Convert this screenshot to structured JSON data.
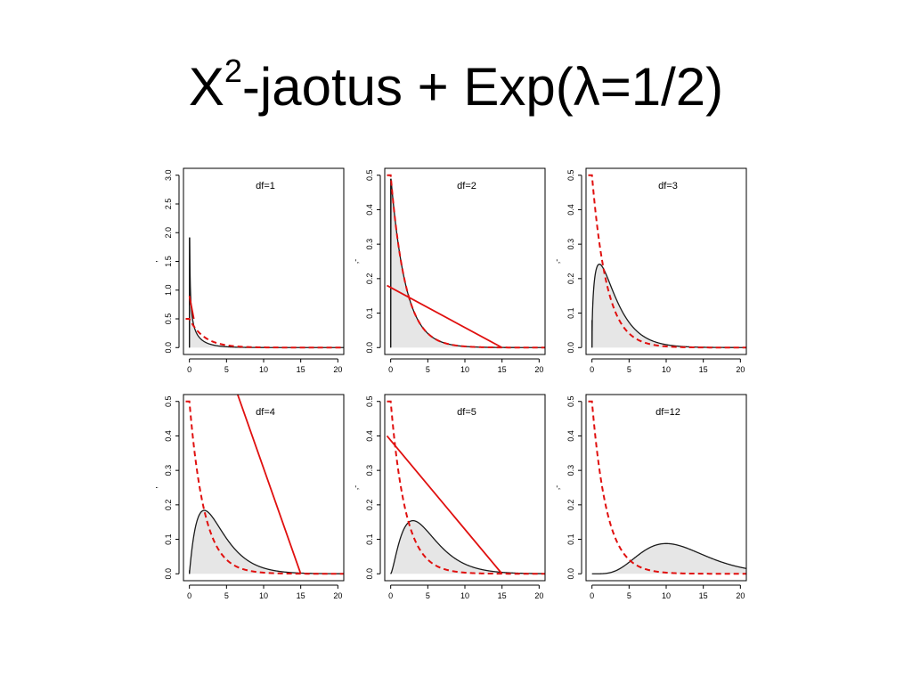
{
  "slide": {
    "title_main": "X",
    "title_sup": "2",
    "title_rest": "-jaotus + Exp(λ=1/2)"
  },
  "colors": {
    "chisq_fill": "#e6e6e6",
    "chisq_line": "#1a1a1a",
    "exp_line": "#e0100f",
    "axis": "#000000"
  },
  "chart_data": [
    {
      "type": "line",
      "title": "df=1",
      "df": 1,
      "xlim": [
        0,
        20
      ],
      "ylim": [
        0,
        3.0
      ],
      "xticks": [
        0,
        5,
        10,
        15,
        20
      ],
      "yticks": [
        0.0,
        0.5,
        1.0,
        1.5,
        2.0,
        2.5,
        3.0
      ],
      "ylabel": ",",
      "series": [
        {
          "kind": "chisq_density",
          "df": 1,
          "style": "filled area, dark outline"
        },
        {
          "kind": "exp_density",
          "rate": 0.5,
          "style": "red dashed"
        },
        {
          "kind": "straight_line",
          "x": [
            0,
            0.6
          ],
          "y": [
            0.9,
            0.5
          ],
          "style": "red solid"
        }
      ]
    },
    {
      "type": "line",
      "title": "df=2",
      "df": 2,
      "xlim": [
        0,
        20
      ],
      "ylim": [
        0,
        0.5
      ],
      "xticks": [
        0,
        5,
        10,
        15,
        20
      ],
      "yticks": [
        0.0,
        0.1,
        0.2,
        0.3,
        0.4,
        0.5
      ],
      "ylabel": ",-",
      "series": [
        {
          "kind": "chisq_density",
          "df": 2,
          "style": "filled area, dark outline"
        },
        {
          "kind": "exp_density",
          "rate": 0.5,
          "style": "red dashed"
        },
        {
          "kind": "straight_line",
          "x": [
            -0.5,
            15
          ],
          "y": [
            0.18,
            0.0
          ],
          "style": "red solid"
        }
      ]
    },
    {
      "type": "line",
      "title": "df=3",
      "df": 3,
      "xlim": [
        0,
        20
      ],
      "ylim": [
        0,
        0.5
      ],
      "xticks": [
        0,
        5,
        10,
        15,
        20
      ],
      "yticks": [
        0.0,
        0.1,
        0.2,
        0.3,
        0.4,
        0.5
      ],
      "ylabel": ",-",
      "series": [
        {
          "kind": "chisq_density",
          "df": 3,
          "style": "filled area, dark outline"
        },
        {
          "kind": "exp_density",
          "rate": 0.5,
          "style": "red dashed"
        }
      ]
    },
    {
      "type": "line",
      "title": "df=4",
      "df": 4,
      "xlim": [
        0,
        20
      ],
      "ylim": [
        0,
        0.5
      ],
      "xticks": [
        0,
        5,
        10,
        15,
        20
      ],
      "yticks": [
        0.0,
        0.1,
        0.2,
        0.3,
        0.4,
        0.5
      ],
      "ylabel": ",",
      "series": [
        {
          "kind": "chisq_density",
          "df": 4,
          "style": "filled area, dark outline"
        },
        {
          "kind": "exp_density",
          "rate": 0.5,
          "style": "red dashed"
        },
        {
          "kind": "straight_line",
          "x": [
            6.5,
            15
          ],
          "y": [
            0.52,
            0.0
          ],
          "style": "red solid"
        }
      ]
    },
    {
      "type": "line",
      "title": "df=5",
      "df": 5,
      "xlim": [
        0,
        20
      ],
      "ylim": [
        0,
        0.5
      ],
      "xticks": [
        0,
        5,
        10,
        15,
        20
      ],
      "yticks": [
        0.0,
        0.1,
        0.2,
        0.3,
        0.4,
        0.5
      ],
      "ylabel": ",-",
      "series": [
        {
          "kind": "chisq_density",
          "df": 5,
          "style": "filled area, dark outline"
        },
        {
          "kind": "exp_density",
          "rate": 0.5,
          "style": "red dashed"
        },
        {
          "kind": "straight_line",
          "x": [
            -0.5,
            15
          ],
          "y": [
            0.4,
            0.0
          ],
          "style": "red solid"
        }
      ]
    },
    {
      "type": "line",
      "title": "df=12",
      "df": 12,
      "xlim": [
        0,
        20
      ],
      "ylim": [
        0,
        0.5
      ],
      "xticks": [
        0,
        5,
        10,
        15,
        20
      ],
      "yticks": [
        0.0,
        0.1,
        0.2,
        0.3,
        0.4,
        0.5
      ],
      "ylabel": ",-",
      "series": [
        {
          "kind": "chisq_density",
          "df": 12,
          "style": "filled area, dark outline"
        },
        {
          "kind": "exp_density",
          "rate": 0.5,
          "style": "red dashed"
        }
      ]
    }
  ]
}
